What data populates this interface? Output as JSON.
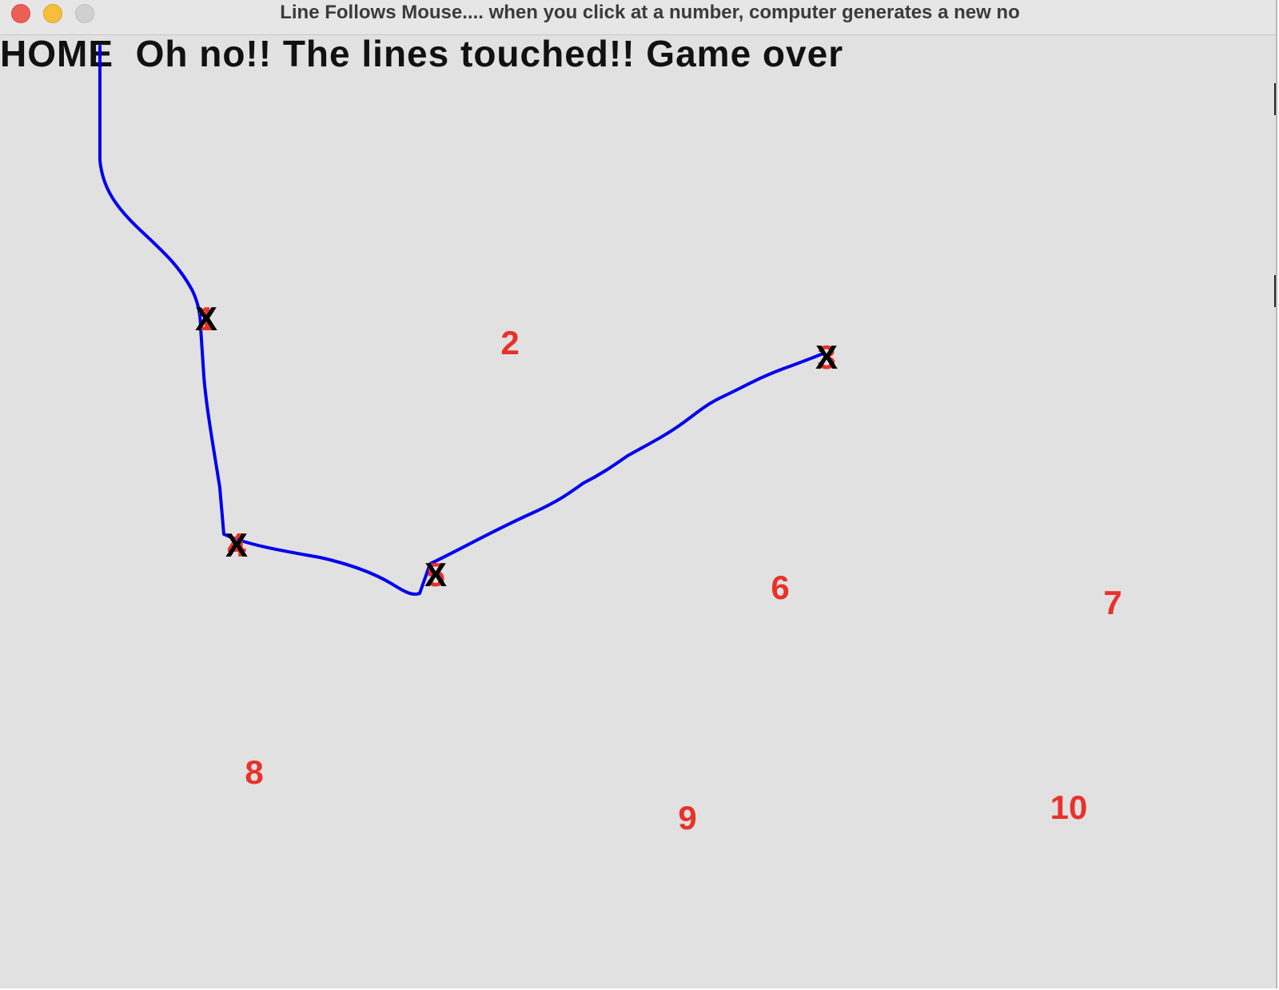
{
  "window": {
    "title": "Line Follows Mouse.... when you click at a number, computer generates a new no"
  },
  "game": {
    "home_label": "HOME",
    "message": "Oh no!! The lines touched!! Game over",
    "colors": {
      "background": "#e1e1e1",
      "number": "#e8322a",
      "line": "#0000ee",
      "marker": "#000000",
      "text": "#111111"
    },
    "targets": [
      {
        "label": "1",
        "clicked": true
      },
      {
        "label": "2",
        "clicked": false
      },
      {
        "label": "3",
        "clicked": true
      },
      {
        "label": "4",
        "clicked": true
      },
      {
        "label": "5",
        "clicked": true
      },
      {
        "label": "6",
        "clicked": false
      },
      {
        "label": "7",
        "clicked": false
      },
      {
        "label": "8",
        "clicked": false
      },
      {
        "label": "9",
        "clicked": false
      },
      {
        "label": "10",
        "clicked": false
      }
    ],
    "clicked_marker": "X"
  }
}
